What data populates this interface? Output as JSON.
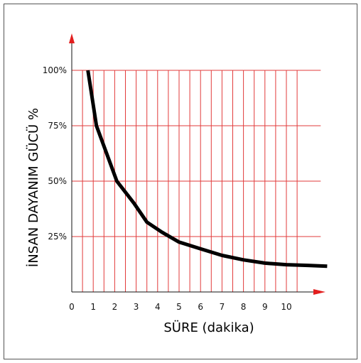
{
  "colors": {
    "grid": "#e23b3b",
    "axis": "#111111",
    "arrow": "#e21e1e",
    "curve": "#000000",
    "frame": "#555555"
  },
  "chart_data": {
    "type": "line",
    "xlabel": "SÜRE (dakika)",
    "ylabel": "İNSAN DAYANIM GÜCÜ %",
    "xlim": [
      0,
      12.5
    ],
    "ylim": [
      0,
      100
    ],
    "x_ticks": [
      "0",
      "1",
      "2",
      "3",
      "4",
      "5",
      "6",
      "7",
      "8",
      "9",
      "10"
    ],
    "y_ticks": [
      "100%",
      "75%",
      "50%",
      "25%"
    ],
    "grid": true,
    "series": [
      {
        "x": [
          0.75,
          1.15,
          2.1,
          2.9,
          3.5,
          4.2,
          5.0,
          6.0,
          7.0,
          8.0,
          9.0,
          10.0,
          11.0,
          11.9
        ],
        "y": [
          100,
          75,
          50,
          40,
          31.5,
          27,
          22.5,
          19.5,
          16.5,
          14.5,
          13,
          12.3,
          12,
          11.6
        ]
      }
    ]
  }
}
